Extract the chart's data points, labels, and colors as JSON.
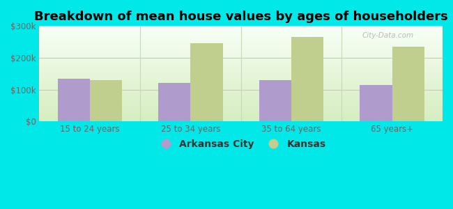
{
  "title": "Breakdown of mean house values by ages of householders",
  "categories": [
    "15 to 24 years",
    "25 to 34 years",
    "35 to 64 years",
    "65 years+"
  ],
  "arkansas_city_values": [
    135000,
    120000,
    130000,
    115000
  ],
  "kansas_values": [
    130000,
    245000,
    265000,
    235000
  ],
  "arkansas_city_color": "#b09ccc",
  "kansas_color": "#c0cf8e",
  "background_color": "#00e8e8",
  "plot_bg_bottom": "#d8edc0",
  "plot_bg_top": "#f8fff8",
  "grid_color": "#e8b8c8",
  "divider_color": "#c8d8b8",
  "ylim": [
    0,
    300000
  ],
  "yticks": [
    0,
    100000,
    200000,
    300000
  ],
  "ytick_labels": [
    "$0",
    "$100k",
    "$200k",
    "$300k"
  ],
  "legend_arkansas": "Arkansas City",
  "legend_kansas": "Kansas",
  "title_fontsize": 13,
  "bar_width": 0.32
}
